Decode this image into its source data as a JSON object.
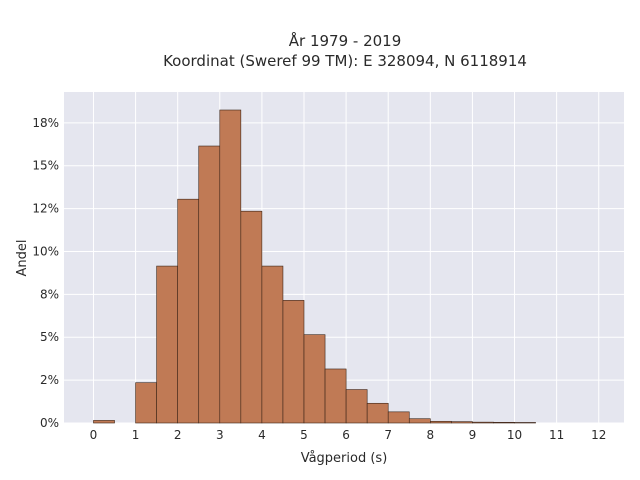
{
  "chart_data": {
    "type": "bar",
    "title": "År 1979 - 2019",
    "subtitle": "Koordinat (Sweref 99 TM): E 328094, N 6118914",
    "xlabel": "Vågperiod (s)",
    "ylabel": "Andel",
    "xlim": [
      -0.7,
      12.6
    ],
    "ylim": [
      0,
      0.193
    ],
    "x_ticks": [
      0,
      1,
      2,
      3,
      4,
      5,
      6,
      7,
      8,
      9,
      10,
      11,
      12
    ],
    "x_tick_labels": [
      "0",
      "1",
      "2",
      "3",
      "4",
      "5",
      "6",
      "7",
      "8",
      "9",
      "10",
      "11",
      "12"
    ],
    "y_ticks": [
      0,
      0.025,
      0.05,
      0.075,
      0.1,
      0.125,
      0.15,
      0.175
    ],
    "y_tick_labels": [
      "0%",
      "2%",
      "5%",
      "8%",
      "10%",
      "12%",
      "15%",
      "18%"
    ],
    "bin_width": 0.5,
    "bins": [
      {
        "x0": 0.0,
        "value": 0.0015
      },
      {
        "x0": 1.0,
        "value": 0.0235
      },
      {
        "x0": 1.5,
        "value": 0.0915
      },
      {
        "x0": 2.0,
        "value": 0.1305
      },
      {
        "x0": 2.5,
        "value": 0.1615
      },
      {
        "x0": 3.0,
        "value": 0.1825
      },
      {
        "x0": 3.5,
        "value": 0.1235
      },
      {
        "x0": 4.0,
        "value": 0.0915
      },
      {
        "x0": 4.5,
        "value": 0.0715
      },
      {
        "x0": 5.0,
        "value": 0.0515
      },
      {
        "x0": 5.5,
        "value": 0.0315
      },
      {
        "x0": 6.0,
        "value": 0.0195
      },
      {
        "x0": 6.5,
        "value": 0.0115
      },
      {
        "x0": 7.0,
        "value": 0.0065
      },
      {
        "x0": 7.5,
        "value": 0.0025
      },
      {
        "x0": 8.0,
        "value": 0.001
      },
      {
        "x0": 8.5,
        "value": 0.0008
      },
      {
        "x0": 9.0,
        "value": 0.0005
      },
      {
        "x0": 9.5,
        "value": 0.0004
      },
      {
        "x0": 10.0,
        "value": 0.0003
      }
    ],
    "grid": true,
    "colors": {
      "bar_fill": "#c07a55",
      "bar_stroke": "#3b2417",
      "plot_background": "#e5e6ef",
      "grid": "#ffffff"
    }
  }
}
